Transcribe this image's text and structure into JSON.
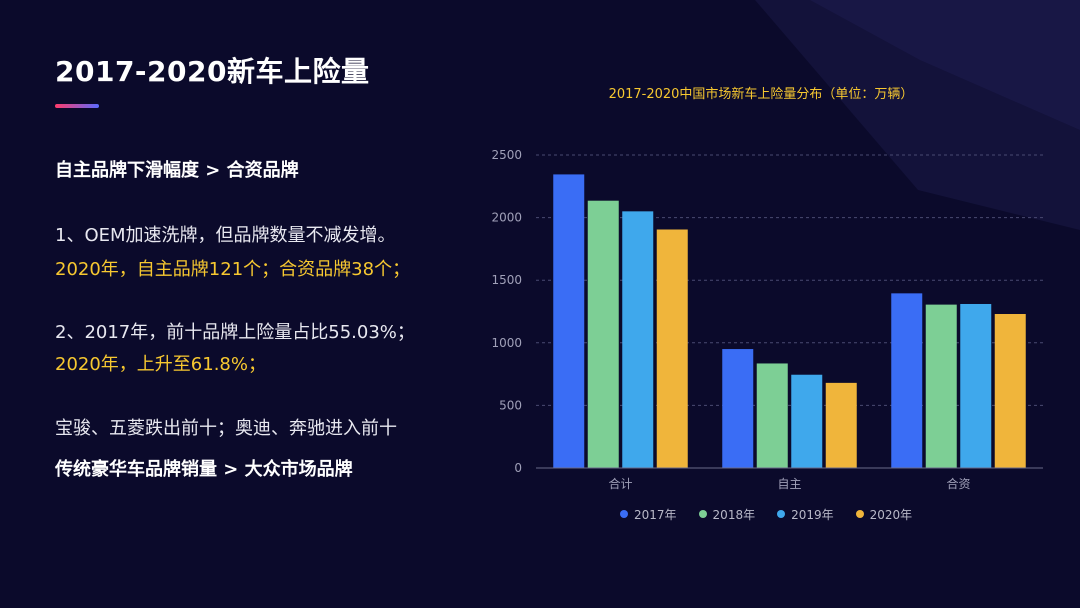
{
  "slide": {
    "title": "2017-2020新车上险量",
    "subheading": "自主品牌下滑幅度 > 合资品牌",
    "point1_line1": "1、OEM加速洗牌，但品牌数量不减发增。",
    "point1_line2": "2020年，自主品牌121个；合资品牌38个；",
    "point2_line1": "2、2017年，前十品牌上险量占比55.03%；",
    "point2_line2": "2020年，上升至61.8%；",
    "note": "宝骏、五菱跌出前十；奥迪、奔驰进入前十",
    "conclusion": "传统豪华车品牌销量 > 大众市场品牌"
  },
  "colors": {
    "background": "#0b0a2b",
    "highlight": "#f7c830",
    "series": [
      "#3a6df5",
      "#7dcf95",
      "#3fa8ec",
      "#f0b53b"
    ]
  },
  "chart_data": {
    "type": "bar",
    "title": "2017-2020中国市场新车上险量分布（单位：万辆）",
    "categories": [
      "合计",
      "自主",
      "合资"
    ],
    "series": [
      {
        "name": "2017年",
        "values": [
          2345,
          950,
          1395
        ]
      },
      {
        "name": "2018年",
        "values": [
          2135,
          835,
          1305
        ]
      },
      {
        "name": "2019年",
        "values": [
          2050,
          745,
          1310
        ]
      },
      {
        "name": "2020年",
        "values": [
          1905,
          680,
          1230
        ]
      }
    ],
    "ylim": [
      0,
      2500
    ],
    "yticks": [
      0,
      500,
      1000,
      1500,
      2000,
      2500
    ],
    "grid": true,
    "legend": "bottom"
  }
}
